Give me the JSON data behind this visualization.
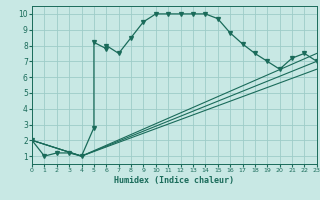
{
  "xlabel": "Humidex (Indice chaleur)",
  "background_color": "#c8e8e4",
  "grid_color": "#9eccc8",
  "line_color": "#1a6b5a",
  "xlim": [
    0,
    23
  ],
  "ylim": [
    0.5,
    10.5
  ],
  "xticks": [
    0,
    1,
    2,
    3,
    4,
    5,
    6,
    7,
    8,
    9,
    10,
    11,
    12,
    13,
    14,
    15,
    16,
    17,
    18,
    19,
    20,
    21,
    22,
    23
  ],
  "yticks": [
    1,
    2,
    3,
    4,
    5,
    6,
    7,
    8,
    9,
    10
  ],
  "curve_x": [
    0,
    1,
    2,
    3,
    4,
    5,
    5,
    6,
    6,
    7,
    8,
    9,
    10,
    11,
    12,
    13,
    14,
    15,
    16,
    17,
    18,
    19,
    20,
    21,
    22,
    23
  ],
  "curve_y": [
    2.0,
    1.0,
    1.2,
    1.2,
    1.0,
    2.8,
    8.2,
    7.8,
    8.0,
    7.5,
    8.5,
    9.5,
    10.0,
    10.0,
    10.0,
    10.0,
    10.0,
    9.7,
    8.8,
    8.1,
    7.5,
    7.0,
    6.5,
    7.2,
    7.5,
    7.0
  ],
  "straight_lines": [
    {
      "x": [
        0,
        4,
        23
      ],
      "y": [
        2.0,
        1.0,
        6.5
      ]
    },
    {
      "x": [
        0,
        4,
        23
      ],
      "y": [
        2.0,
        1.0,
        7.0
      ]
    },
    {
      "x": [
        0,
        4,
        23
      ],
      "y": [
        2.0,
        1.0,
        7.5
      ]
    }
  ]
}
